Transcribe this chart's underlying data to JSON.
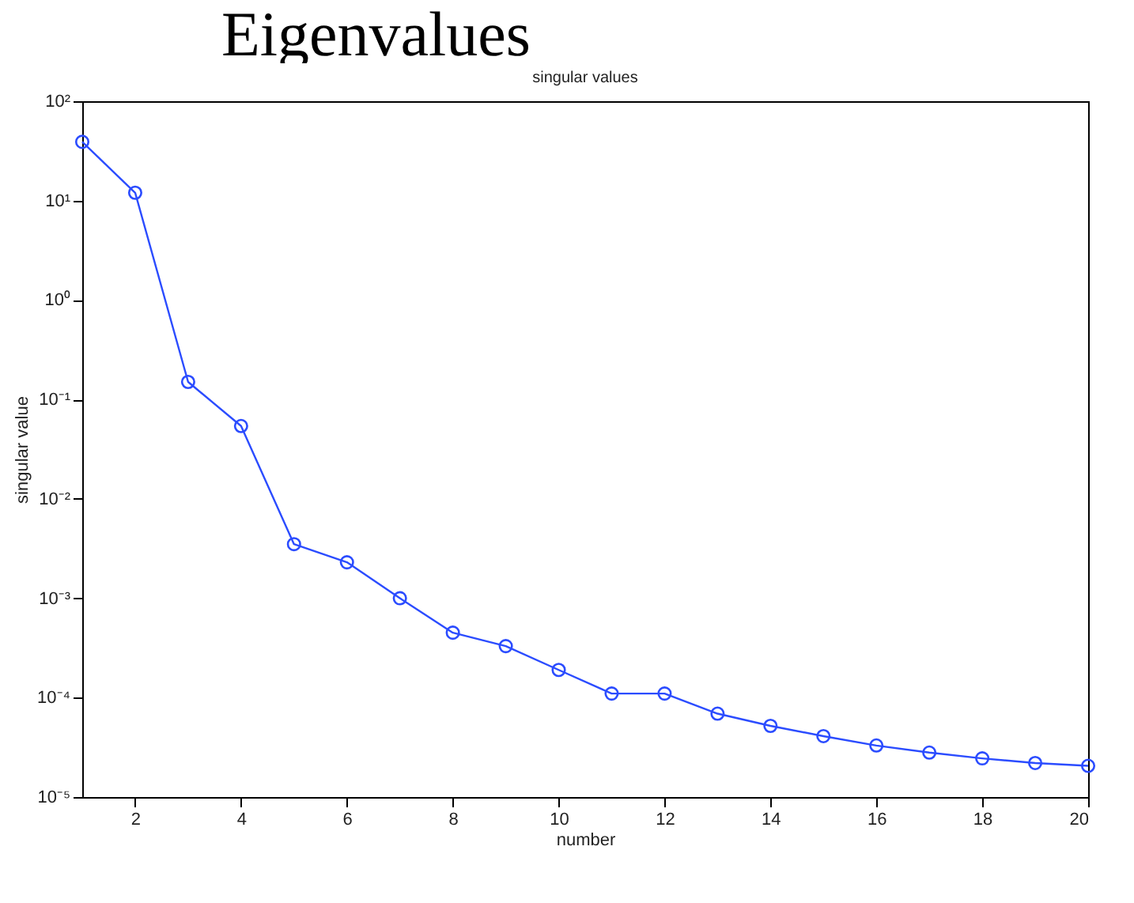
{
  "chart_data": {
    "type": "line",
    "title": "singular values",
    "xlabel": "number",
    "ylabel": "singular value",
    "annotations": [
      "Eigenvalues"
    ],
    "x": [
      1,
      2,
      3,
      4,
      5,
      6,
      7,
      8,
      9,
      10,
      11,
      12,
      13,
      14,
      15,
      16,
      17,
      18,
      19,
      20
    ],
    "series": [
      {
        "color": "#2b4cff",
        "values": [
          39,
          12,
          0.15,
          0.054,
          0.0035,
          0.0023,
          0.001,
          0.00045,
          0.00033,
          0.00019,
          0.00011,
          0.00011,
          6.9e-05,
          5.2e-05,
          4.1e-05,
          3.3e-05,
          2.8e-05,
          2.45e-05,
          2.2e-05,
          2.06e-05
        ]
      }
    ],
    "log": "y",
    "xlim": [
      1,
      20
    ],
    "xticks": [
      2,
      4,
      6,
      8,
      10,
      12,
      14,
      16,
      18,
      20
    ],
    "ylim": [
      1e-05,
      100
    ],
    "yticks": [
      {
        "value": 1e-05,
        "label": "10⁻⁵"
      },
      {
        "value": 0.0001,
        "label": "10⁻⁴"
      },
      {
        "value": 0.001,
        "label": "10⁻³"
      },
      {
        "value": 0.01,
        "label": "10⁻²"
      },
      {
        "value": 0.1,
        "label": "10⁻¹"
      },
      {
        "value": 1,
        "label": "10⁰"
      },
      {
        "value": 10,
        "label": "10¹"
      },
      {
        "value": 100,
        "label": "10²"
      }
    ],
    "grid": false,
    "legend": false,
    "marker": "circle",
    "line_style": "solid"
  }
}
